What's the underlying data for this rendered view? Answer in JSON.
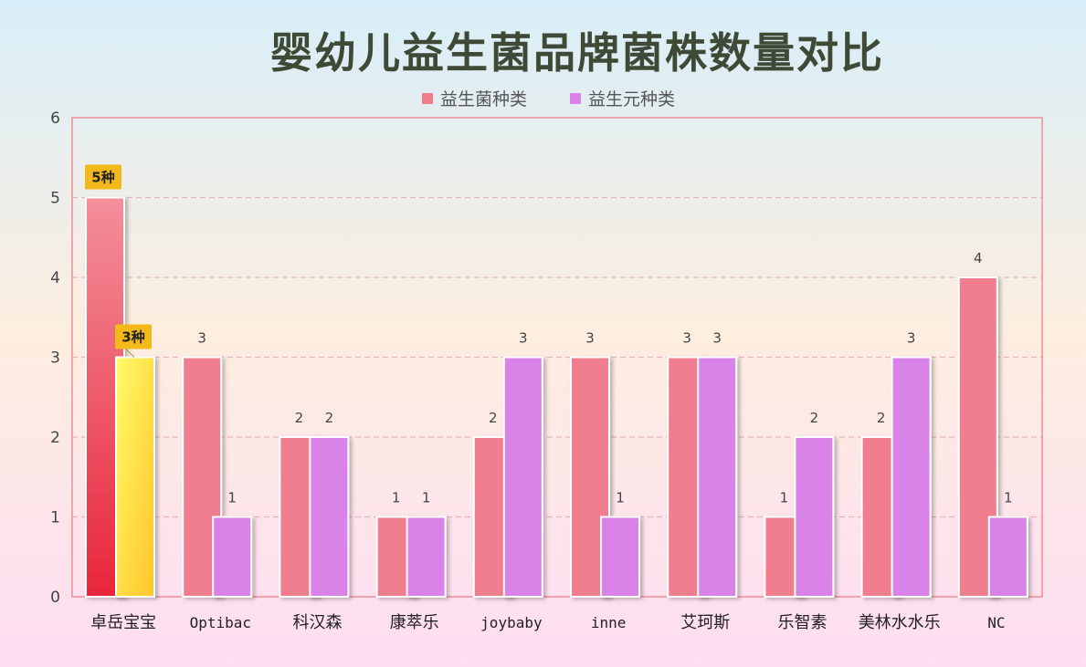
{
  "chart_data": {
    "type": "bar",
    "title": "婴幼儿益生菌品牌菌株数量对比",
    "categories": [
      "卓岳宝宝",
      "Optibac",
      "科汉森",
      "康萃乐",
      "joybaby",
      "inne",
      "艾珂斯",
      "乐智素",
      "美林水水乐",
      "NC"
    ],
    "series": [
      {
        "name": "益生菌种类",
        "values": [
          5,
          3,
          2,
          1,
          2,
          3,
          3,
          1,
          2,
          4
        ],
        "color": "#f07e8e"
      },
      {
        "name": "益生元种类",
        "values": [
          3,
          1,
          2,
          1,
          3,
          1,
          3,
          2,
          3,
          1
        ],
        "color": "#d983e8"
      }
    ],
    "ylim": [
      0,
      6
    ],
    "yticks": [
      0,
      1,
      2,
      3,
      4,
      5,
      6
    ],
    "grid": true,
    "legend": "top-center",
    "highlight_category": "卓岳宝宝",
    "callouts": [
      "5种",
      "3种"
    ],
    "highlight_colors": {
      "probiotic": "#e8263a",
      "prebiotic": "#ffd63a",
      "callout_bg": "#f3b81a"
    }
  }
}
